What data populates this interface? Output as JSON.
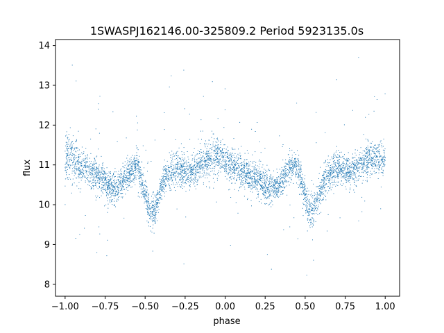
{
  "chart_data": {
    "type": "scatter",
    "title": "1SWASPJ162146.00-325809.2 Period 5923135.0s",
    "xlabel": "phase",
    "ylabel": "flux",
    "xlim": [
      -1.06,
      1.09
    ],
    "ylim": [
      7.7,
      14.15
    ],
    "xticks": [
      -1.0,
      -0.75,
      -0.5,
      -0.25,
      0.0,
      0.25,
      0.5,
      0.75,
      1.0
    ],
    "xtick_labels": [
      "−1.00",
      "−0.75",
      "−0.50",
      "−0.25",
      "0.00",
      "0.25",
      "0.50",
      "0.75",
      "1.00"
    ],
    "yticks": [
      8,
      9,
      10,
      11,
      12,
      13,
      14
    ],
    "ytick_labels": [
      "8",
      "9",
      "10",
      "11",
      "12",
      "13",
      "14"
    ],
    "grid": false,
    "point_color": "#1f77b4",
    "series": [
      {
        "x": [
          -1.0,
          -0.97,
          -0.92,
          -0.87,
          -0.83,
          -0.78,
          -0.73,
          -0.68,
          -0.64,
          -0.6,
          -0.55,
          -0.51,
          -0.47,
          -0.44,
          -0.41,
          -0.37,
          -0.32,
          -0.27,
          -0.22,
          -0.18,
          -0.13,
          -0.08,
          -0.04,
          0.0,
          0.03,
          0.08,
          0.13,
          0.17,
          0.22,
          0.27,
          0.32,
          0.36,
          0.4,
          0.45,
          0.49,
          0.53,
          0.56,
          0.59,
          0.63,
          0.68,
          0.73,
          0.78,
          0.82,
          0.87,
          0.92,
          0.96,
          1.0
        ],
        "y": [
          11.1,
          11.3,
          11.0,
          10.9,
          10.8,
          10.7,
          10.5,
          10.4,
          10.6,
          10.8,
          11.0,
          10.4,
          9.8,
          9.8,
          10.3,
          10.7,
          10.9,
          10.9,
          10.8,
          10.9,
          11.1,
          11.2,
          11.2,
          11.1,
          11.0,
          10.9,
          10.8,
          10.7,
          10.6,
          10.4,
          10.4,
          10.6,
          10.9,
          11.0,
          10.4,
          9.8,
          9.9,
          10.3,
          10.7,
          10.9,
          10.9,
          10.8,
          10.9,
          11.1,
          11.2,
          11.2,
          11.1
        ],
        "spread": [
          0.5,
          0.9,
          0.5,
          0.5,
          0.5,
          0.5,
          0.5,
          0.5,
          0.4,
          0.4,
          0.5,
          0.5,
          0.5,
          0.5,
          0.4,
          0.5,
          0.5,
          0.5,
          0.4,
          0.5,
          0.5,
          0.6,
          0.5,
          0.5,
          0.5,
          0.5,
          0.5,
          0.5,
          0.5,
          0.5,
          0.4,
          0.4,
          0.5,
          0.5,
          0.5,
          0.5,
          0.5,
          0.4,
          0.5,
          0.5,
          0.5,
          0.4,
          0.5,
          0.5,
          0.6,
          0.5,
          0.5
        ]
      }
    ]
  }
}
